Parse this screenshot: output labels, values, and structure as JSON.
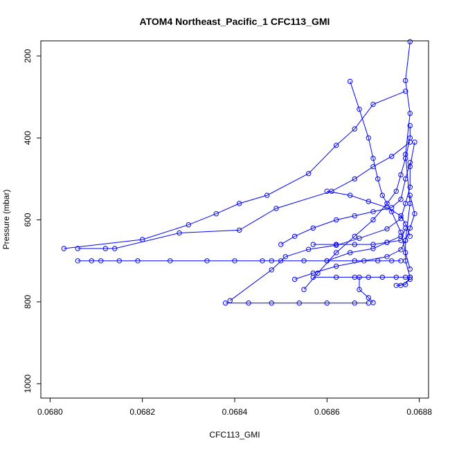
{
  "chart_data": {
    "type": "line",
    "title": "ATOM4 Northeast_Pacific_1 CFC113_GMI",
    "xlabel": "CFC113_GMI",
    "ylabel": "Pressure (mbar)",
    "xlim": [
      0.06798,
      0.06882
    ],
    "ylim": [
      1035,
      163
    ],
    "y_inverted": true,
    "grid": false,
    "legend": "none",
    "marker": "open-circle",
    "color": "#0000ff",
    "x_ticks": [
      "0.0680",
      "0.0682",
      "0.0684",
      "0.0686",
      "0.0688"
    ],
    "x_tick_values": [
      0.068,
      0.0682,
      0.0684,
      0.0686,
      0.0688
    ],
    "y_ticks": [
      "200",
      "400",
      "600",
      "800",
      "1000"
    ],
    "y_tick_values": [
      200,
      400,
      600,
      800,
      1000
    ],
    "series": [
      {
        "points": [
          [
            0.06878,
            165
          ],
          [
            0.06877,
            260
          ],
          [
            0.06878,
            340
          ],
          [
            0.06877,
            440
          ],
          [
            0.06878,
            560
          ],
          [
            0.06877,
            650
          ],
          [
            0.06877,
            700
          ],
          [
            0.06878,
            740
          ],
          [
            0.06877,
            758
          ],
          [
            0.06875,
            760
          ],
          [
            0.06876,
            760
          ],
          [
            0.06878,
            745
          ]
        ]
      },
      {
        "points": [
          [
            0.06803,
            670
          ],
          [
            0.0682,
            648
          ],
          [
            0.0683,
            612
          ],
          [
            0.06836,
            585
          ],
          [
            0.06841,
            560
          ],
          [
            0.06847,
            540
          ],
          [
            0.06856,
            487
          ],
          [
            0.06862,
            418
          ],
          [
            0.06866,
            378
          ],
          [
            0.0687,
            318
          ],
          [
            0.06877,
            286
          ]
        ]
      },
      {
        "points": [
          [
            0.06806,
            670
          ],
          [
            0.06812,
            670
          ],
          [
            0.06814,
            670
          ],
          [
            0.06828,
            632
          ],
          [
            0.06841,
            625
          ],
          [
            0.06849,
            572
          ],
          [
            0.06861,
            530
          ],
          [
            0.06866,
            500
          ],
          [
            0.0687,
            470
          ],
          [
            0.06874,
            445
          ],
          [
            0.06878,
            410
          ]
        ]
      },
      {
        "points": [
          [
            0.06806,
            700
          ],
          [
            0.06809,
            700
          ],
          [
            0.06811,
            700
          ],
          [
            0.06815,
            700
          ],
          [
            0.06819,
            700
          ],
          [
            0.06826,
            700
          ],
          [
            0.06834,
            700
          ],
          [
            0.0684,
            700
          ],
          [
            0.06846,
            700
          ],
          [
            0.06848,
            700
          ],
          [
            0.0685,
            700
          ],
          [
            0.06855,
            700
          ],
          [
            0.0686,
            700
          ],
          [
            0.06866,
            700
          ],
          [
            0.06871,
            700
          ],
          [
            0.06874,
            700
          ],
          [
            0.06876,
            700
          ]
        ]
      },
      {
        "points": [
          [
            0.06838,
            803
          ],
          [
            0.06843,
            803
          ],
          [
            0.06848,
            803
          ],
          [
            0.06854,
            803
          ],
          [
            0.0686,
            803
          ],
          [
            0.06866,
            803
          ],
          [
            0.06869,
            803
          ]
        ]
      },
      {
        "points": [
          [
            0.06839,
            797
          ],
          [
            0.06848,
            722
          ],
          [
            0.06851,
            690
          ],
          [
            0.06856,
            672
          ],
          [
            0.06862,
            662
          ],
          [
            0.06867,
            645
          ],
          [
            0.06873,
            622
          ],
          [
            0.06876,
            597
          ],
          [
            0.06877,
            560
          ],
          [
            0.06878,
            520
          ],
          [
            0.06878,
            470
          ],
          [
            0.06879,
            410
          ]
        ]
      },
      {
        "points": [
          [
            0.06853,
            745
          ],
          [
            0.06857,
            730
          ],
          [
            0.06862,
            713
          ],
          [
            0.06868,
            700
          ],
          [
            0.06873,
            690
          ],
          [
            0.06876,
            673
          ],
          [
            0.06877,
            650
          ],
          [
            0.06878,
            620
          ],
          [
            0.06879,
            585
          ],
          [
            0.06878,
            540
          ]
        ]
      },
      {
        "points": [
          [
            0.06855,
            770
          ],
          [
            0.06858,
            730
          ],
          [
            0.06862,
            680
          ],
          [
            0.06866,
            640
          ],
          [
            0.0687,
            600
          ],
          [
            0.06873,
            560
          ],
          [
            0.06875,
            530
          ],
          [
            0.06876,
            490
          ],
          [
            0.06877,
            450
          ],
          [
            0.06878,
            400
          ],
          [
            0.06878,
            370
          ]
        ]
      },
      {
        "points": [
          [
            0.06857,
            740
          ],
          [
            0.06862,
            740
          ],
          [
            0.06866,
            740
          ],
          [
            0.06869,
            740
          ],
          [
            0.06872,
            740
          ],
          [
            0.06875,
            740
          ],
          [
            0.06877,
            740
          ],
          [
            0.06878,
            740
          ]
        ]
      },
      {
        "points": [
          [
            0.0685,
            660
          ],
          [
            0.06853,
            640
          ],
          [
            0.06857,
            620
          ],
          [
            0.06862,
            600
          ],
          [
            0.06866,
            590
          ],
          [
            0.0687,
            580
          ],
          [
            0.06874,
            570
          ],
          [
            0.06876,
            550
          ],
          [
            0.06877,
            500
          ],
          [
            0.06878,
            460
          ]
        ]
      },
      {
        "points": [
          [
            0.0686,
            530
          ],
          [
            0.06865,
            540
          ],
          [
            0.06869,
            555
          ],
          [
            0.06873,
            570
          ],
          [
            0.06876,
            590
          ],
          [
            0.06877,
            610
          ],
          [
            0.06878,
            640
          ]
        ]
      },
      {
        "points": [
          [
            0.06857,
            660
          ],
          [
            0.06862,
            660
          ],
          [
            0.06866,
            660
          ],
          [
            0.0687,
            660
          ],
          [
            0.06873,
            655
          ],
          [
            0.06876,
            650
          ],
          [
            0.06877,
            620
          ]
        ]
      },
      {
        "points": [
          [
            0.06865,
            262
          ],
          [
            0.06867,
            330
          ],
          [
            0.06869,
            400
          ],
          [
            0.0687,
            450
          ],
          [
            0.06871,
            500
          ],
          [
            0.06872,
            540
          ],
          [
            0.06874,
            580
          ],
          [
            0.06876,
            630
          ],
          [
            0.06877,
            680
          ],
          [
            0.06878,
            720
          ]
        ]
      },
      {
        "points": [
          [
            0.06867,
            740
          ],
          [
            0.06867,
            770
          ],
          [
            0.06869,
            790
          ],
          [
            0.0687,
            802
          ]
        ]
      },
      {
        "points": [
          [
            0.0686,
            700
          ],
          [
            0.06865,
            680
          ],
          [
            0.0687,
            670
          ],
          [
            0.06873,
            655
          ],
          [
            0.06876,
            640
          ]
        ]
      }
    ]
  }
}
